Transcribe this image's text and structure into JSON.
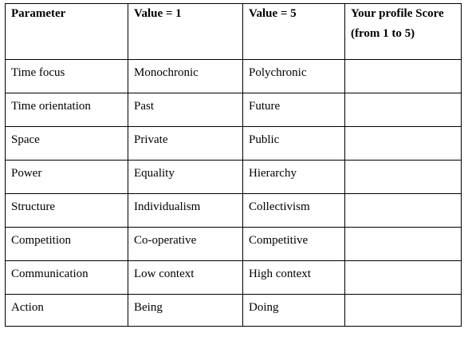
{
  "table": {
    "headers": {
      "parameter": "Parameter",
      "value1": "Value = 1",
      "value5": "Value = 5",
      "score_line1": "Your profile Score",
      "score_line2": "(from 1 to 5)"
    },
    "rows": [
      {
        "parameter": "Time focus",
        "value1": "Monochronic",
        "value5": "Polychronic",
        "score": ""
      },
      {
        "parameter": "Time orientation",
        "value1": "Past",
        "value5": "Future",
        "score": ""
      },
      {
        "parameter": "Space",
        "value1": "Private",
        "value5": "Public",
        "score": ""
      },
      {
        "parameter": "Power",
        "value1": "Equality",
        "value5": "Hierarchy",
        "score": ""
      },
      {
        "parameter": "Structure",
        "value1": "Individualism",
        "value5": "Collectivism",
        "score": ""
      },
      {
        "parameter": "Competition",
        "value1": "Co-operative",
        "value5": "Competitive",
        "score": ""
      },
      {
        "parameter": "Communication",
        "value1": "Low context",
        "value5": "High context",
        "score": ""
      },
      {
        "parameter": "Action",
        "value1": "Being",
        "value5": "Doing",
        "score": ""
      }
    ]
  }
}
